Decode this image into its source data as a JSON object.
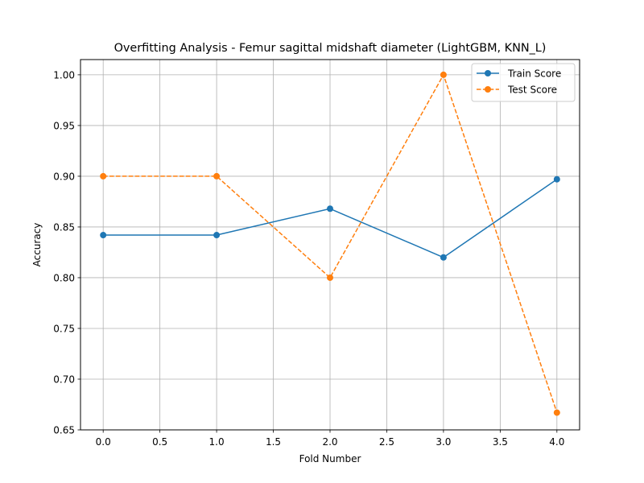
{
  "chart_data": {
    "type": "line",
    "title": "Overfitting Analysis - Femur sagittal midshaft diameter (LightGBM, KNN_L)",
    "xlabel": "Fold Number",
    "ylabel": "Accuracy",
    "xlim": [
      -0.2,
      4.2
    ],
    "ylim": [
      0.65,
      1.015
    ],
    "x_ticks": [
      0.0,
      0.5,
      1.0,
      1.5,
      2.0,
      2.5,
      3.0,
      3.5,
      4.0
    ],
    "x_tick_labels": [
      "0.0",
      "0.5",
      "1.0",
      "1.5",
      "2.0",
      "2.5",
      "3.0",
      "3.5",
      "4.0"
    ],
    "y_ticks": [
      0.65,
      0.7,
      0.75,
      0.8,
      0.85,
      0.9,
      0.95,
      1.0
    ],
    "y_tick_labels": [
      "0.65",
      "0.70",
      "0.75",
      "0.80",
      "0.85",
      "0.90",
      "0.95",
      "1.00"
    ],
    "grid": true,
    "legend_position": "top-right",
    "x": [
      0,
      1,
      2,
      3,
      4
    ],
    "series": [
      {
        "name": "Train Score",
        "values": [
          0.842,
          0.842,
          0.868,
          0.82,
          0.897
        ],
        "color": "#1f77b4",
        "line_style": "solid",
        "marker": "circle"
      },
      {
        "name": "Test Score",
        "values": [
          0.9,
          0.9,
          0.8,
          1.0,
          0.667
        ],
        "color": "#ff7f0e",
        "line_style": "dashed",
        "marker": "circle"
      }
    ]
  }
}
